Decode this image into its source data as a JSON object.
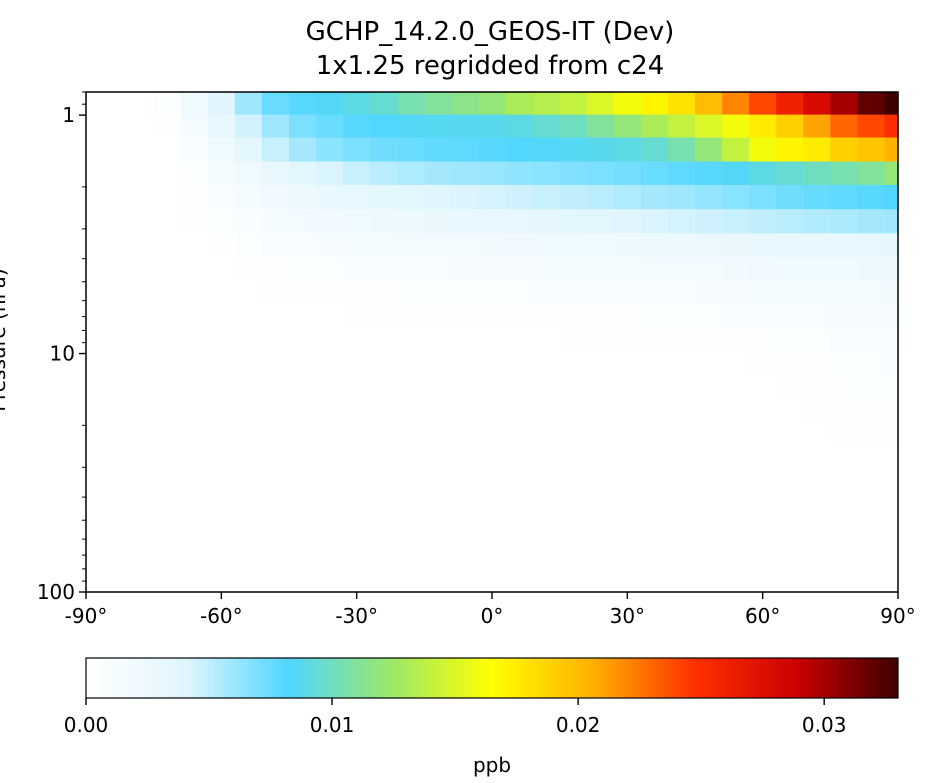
{
  "chart_data": {
    "type": "heatmap",
    "title": "GCHP_14.2.0_GEOS-IT (Dev)",
    "subtitle": "1x1.25 regridded from c24",
    "xlabel": "",
    "ylabel": "Pressure (hPa)",
    "xlim": [
      -90,
      90
    ],
    "ylim": [
      100,
      0.8
    ],
    "y_scale": "log",
    "x_ticks": [
      -90,
      -60,
      -30,
      0,
      30,
      60,
      90
    ],
    "x_tick_labels": [
      "-90°",
      "-60°",
      "-30°",
      "0°",
      "30°",
      "60°",
      "90°"
    ],
    "y_ticks": [
      1,
      10,
      100
    ],
    "y_tick_labels": [
      "1",
      "10",
      "100"
    ],
    "pressure_levels": [
      0.9,
      1.1,
      1.4,
      1.75,
      2.2,
      2.8,
      3.5,
      4.4,
      5.5,
      7,
      8.8,
      11,
      14,
      17.5,
      22
    ],
    "latitude_bins": [
      -72,
      -66,
      -60,
      -54,
      -48,
      -42,
      -36,
      -30,
      -24,
      -18,
      -12,
      -6,
      0,
      6,
      12,
      18,
      24,
      30,
      36,
      42,
      48,
      54,
      60,
      66,
      72,
      78,
      84,
      90
    ],
    "values_ppb": [
      [
        0.0005,
        0.002,
        0.004,
        0.006,
        0.0075,
        0.008,
        0.0085,
        0.009,
        0.0095,
        0.0105,
        0.011,
        0.0115,
        0.012,
        0.013,
        0.0135,
        0.014,
        0.015,
        0.016,
        0.017,
        0.018,
        0.02,
        0.022,
        0.024,
        0.026,
        0.028,
        0.03,
        0.032,
        0.033
      ],
      [
        0.0002,
        0.0015,
        0.003,
        0.0045,
        0.006,
        0.007,
        0.0075,
        0.008,
        0.0082,
        0.0085,
        0.0086,
        0.0087,
        0.0088,
        0.009,
        0.0095,
        0.01,
        0.011,
        0.012,
        0.013,
        0.014,
        0.015,
        0.016,
        0.0175,
        0.019,
        0.021,
        0.023,
        0.024,
        0.025
      ],
      [
        0.0001,
        0.0008,
        0.002,
        0.0035,
        0.0048,
        0.0058,
        0.0065,
        0.007,
        0.0073,
        0.0075,
        0.0077,
        0.0078,
        0.008,
        0.0082,
        0.0084,
        0.0086,
        0.0088,
        0.009,
        0.0095,
        0.0105,
        0.012,
        0.014,
        0.016,
        0.017,
        0.0175,
        0.019,
        0.0195,
        0.0205
      ],
      [
        0,
        0.0005,
        0.0013,
        0.0022,
        0.003,
        0.0037,
        0.0043,
        0.0048,
        0.0052,
        0.0055,
        0.0058,
        0.006,
        0.0062,
        0.0064,
        0.0066,
        0.0068,
        0.007,
        0.0072,
        0.0075,
        0.0078,
        0.008,
        0.0085,
        0.009,
        0.0095,
        0.01,
        0.0105,
        0.011,
        0.012
      ],
      [
        0,
        0.0003,
        0.0008,
        0.0014,
        0.0019,
        0.0024,
        0.0028,
        0.0032,
        0.0035,
        0.0038,
        0.004,
        0.0042,
        0.0044,
        0.0046,
        0.0048,
        0.005,
        0.0052,
        0.0055,
        0.0058,
        0.006,
        0.0063,
        0.0066,
        0.007,
        0.0073,
        0.0076,
        0.0078,
        0.008,
        0.0082
      ],
      [
        0,
        0.0002,
        0.0005,
        0.0009,
        0.0013,
        0.0016,
        0.0019,
        0.0021,
        0.0023,
        0.0025,
        0.0027,
        0.0029,
        0.003,
        0.0032,
        0.0034,
        0.0036,
        0.0038,
        0.004,
        0.0042,
        0.0044,
        0.0046,
        0.0048,
        0.005,
        0.0052,
        0.0054,
        0.0056,
        0.0058,
        0.006
      ],
      [
        0,
        0.0001,
        0.0003,
        0.0005,
        0.0007,
        0.0009,
        0.0011,
        0.0013,
        0.0014,
        0.0015,
        0.0016,
        0.0017,
        0.0018,
        0.0019,
        0.002,
        0.0021,
        0.0022,
        0.0023,
        0.0024,
        0.0025,
        0.0026,
        0.0027,
        0.0028,
        0.0029,
        0.003,
        0.0031,
        0.0032,
        0.0033
      ],
      [
        0,
        0,
        0.0001,
        0.0003,
        0.0004,
        0.0005,
        0.0006,
        0.0007,
        0.0008,
        0.0009,
        0.001,
        0.0011,
        0.0012,
        0.0012,
        0.0013,
        0.0013,
        0.0014,
        0.0014,
        0.0015,
        0.0016,
        0.0017,
        0.0018,
        0.0019,
        0.002,
        0.0021,
        0.0022,
        0.0023,
        0.0024
      ],
      [
        0,
        0,
        0,
        0.0001,
        0.0002,
        0.0003,
        0.0003,
        0.0004,
        0.0004,
        0.0005,
        0.0005,
        0.0006,
        0.0006,
        0.0006,
        0.0007,
        0.0007,
        0.0008,
        0.0008,
        0.0009,
        0.001,
        0.0011,
        0.0012,
        0.0013,
        0.0014,
        0.0015,
        0.0016,
        0.0017,
        0.0018
      ],
      [
        0,
        0,
        0,
        0,
        0.0001,
        0.0001,
        0.0001,
        0.0002,
        0.0002,
        0.0002,
        0.0002,
        0.0003,
        0.0003,
        0.0003,
        0.0003,
        0.0004,
        0.0004,
        0.0004,
        0.0005,
        0.0005,
        0.0006,
        0.0007,
        0.0008,
        0.0009,
        0.001,
        0.0011,
        0.0012,
        0.0013
      ],
      [
        0,
        0,
        0,
        0,
        0,
        0,
        0,
        0,
        0.0001,
        0.0001,
        0.0001,
        0.0001,
        0.0001,
        0.0001,
        0.0001,
        0.0002,
        0.0002,
        0.0002,
        0.0002,
        0.0002,
        0.0003,
        0.0003,
        0.0004,
        0.0005,
        0.0006,
        0.0007,
        0.0008,
        0.0009
      ],
      [
        0,
        0,
        0,
        0,
        0,
        0,
        0,
        0,
        0,
        0,
        0,
        0,
        0,
        0,
        0,
        0.0001,
        0.0001,
        0.0001,
        0.0001,
        0.0001,
        0.0001,
        0.0001,
        0.0002,
        0.0003,
        0.0004,
        0.0005,
        0.0006,
        0.0007
      ],
      [
        0,
        0,
        0,
        0,
        0,
        0,
        0,
        0,
        0,
        0,
        0,
        0,
        0,
        0,
        0,
        0,
        0,
        0,
        0,
        0,
        0,
        0,
        0.0001,
        0.0002,
        0.0003,
        0.0004,
        0.0005,
        0.0005
      ],
      [
        0,
        0,
        0,
        0,
        0,
        0,
        0,
        0,
        0,
        0,
        0,
        0,
        0,
        0,
        0,
        0,
        0,
        0,
        0,
        0,
        0,
        0,
        0,
        0.0001,
        0.0002,
        0.0003,
        0.0003,
        0.0004
      ],
      [
        0,
        0,
        0,
        0,
        0,
        0,
        0,
        0,
        0,
        0,
        0,
        0,
        0,
        0,
        0,
        0,
        0,
        0,
        0,
        0,
        0,
        0,
        0,
        0,
        0.0001,
        0.0002,
        0.0002,
        0.0003
      ]
    ],
    "colorbar": {
      "label": "ppb",
      "range": [
        0,
        0.033
      ],
      "ticks": [
        0,
        0.01,
        0.02,
        0.03
      ],
      "tick_labels": [
        "0.00",
        "0.01",
        "0.02",
        "0.03"
      ],
      "colormap_stops": [
        "#ffffff",
        "#dff5fd",
        "#4fd6ff",
        "#9be86a",
        "#ffff00",
        "#ffb000",
        "#ff3000",
        "#cc0000",
        "#3d0000"
      ]
    }
  }
}
